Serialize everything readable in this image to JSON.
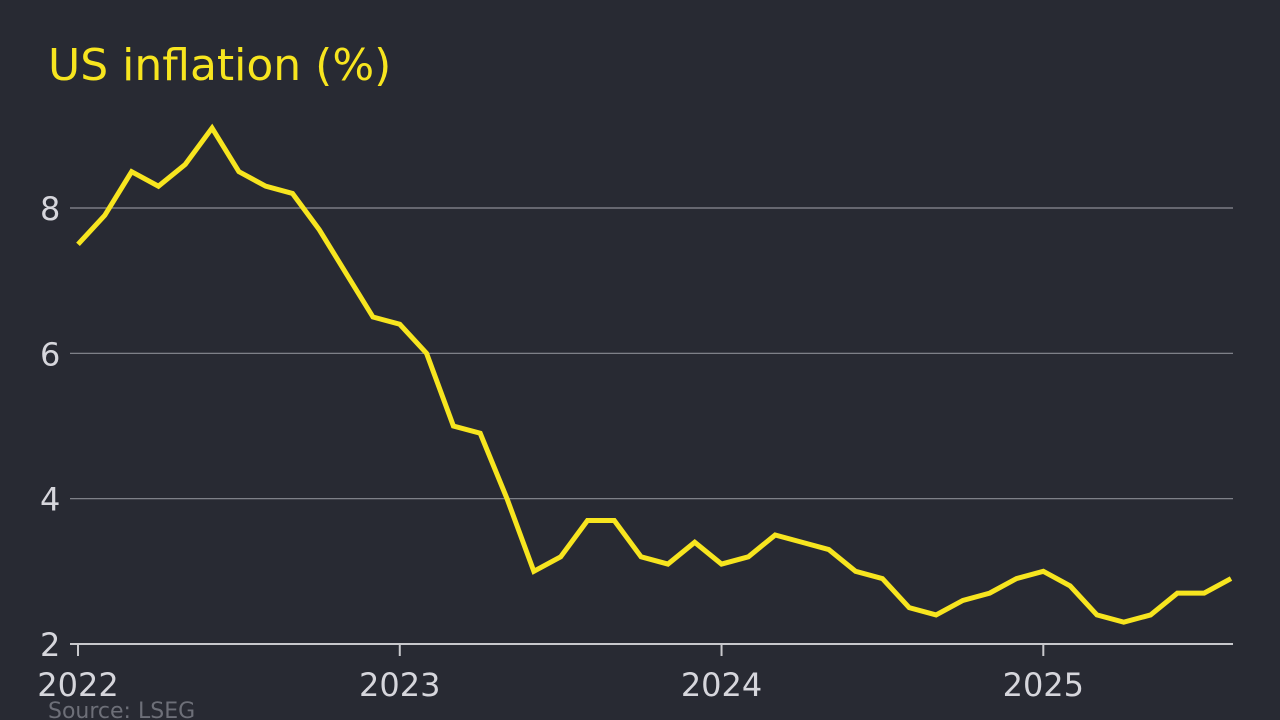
{
  "chart_data": {
    "type": "line",
    "title": "US inflation (%)",
    "source": "Source: LSEG",
    "categories": [
      "2022",
      null,
      null,
      null,
      null,
      null,
      null,
      null,
      null,
      null,
      null,
      null,
      "2023",
      null,
      null,
      null,
      null,
      null,
      null,
      null,
      null,
      null,
      null,
      null,
      "2024",
      null,
      null,
      null,
      null,
      null,
      null,
      null,
      null,
      null,
      null,
      null,
      "2025",
      null,
      null,
      null,
      null,
      null,
      null,
      null
    ],
    "values": [
      7.5,
      7.9,
      8.5,
      8.3,
      8.6,
      9.1,
      8.5,
      8.3,
      8.2,
      7.7,
      7.1,
      6.5,
      6.4,
      6.0,
      5.0,
      4.9,
      4.0,
      3.0,
      3.2,
      3.7,
      3.7,
      3.2,
      3.1,
      3.4,
      3.1,
      3.2,
      3.5,
      3.4,
      3.3,
      3.0,
      2.9,
      2.5,
      2.4,
      2.6,
      2.7,
      2.9,
      3.0,
      2.8,
      2.4,
      2.3,
      2.4,
      2.7,
      2.7,
      2.9
    ],
    "color": "#f7e51f",
    "ylim": [
      2,
      9.5
    ],
    "yticks": [
      2,
      4,
      6,
      8
    ],
    "grid": true
  }
}
